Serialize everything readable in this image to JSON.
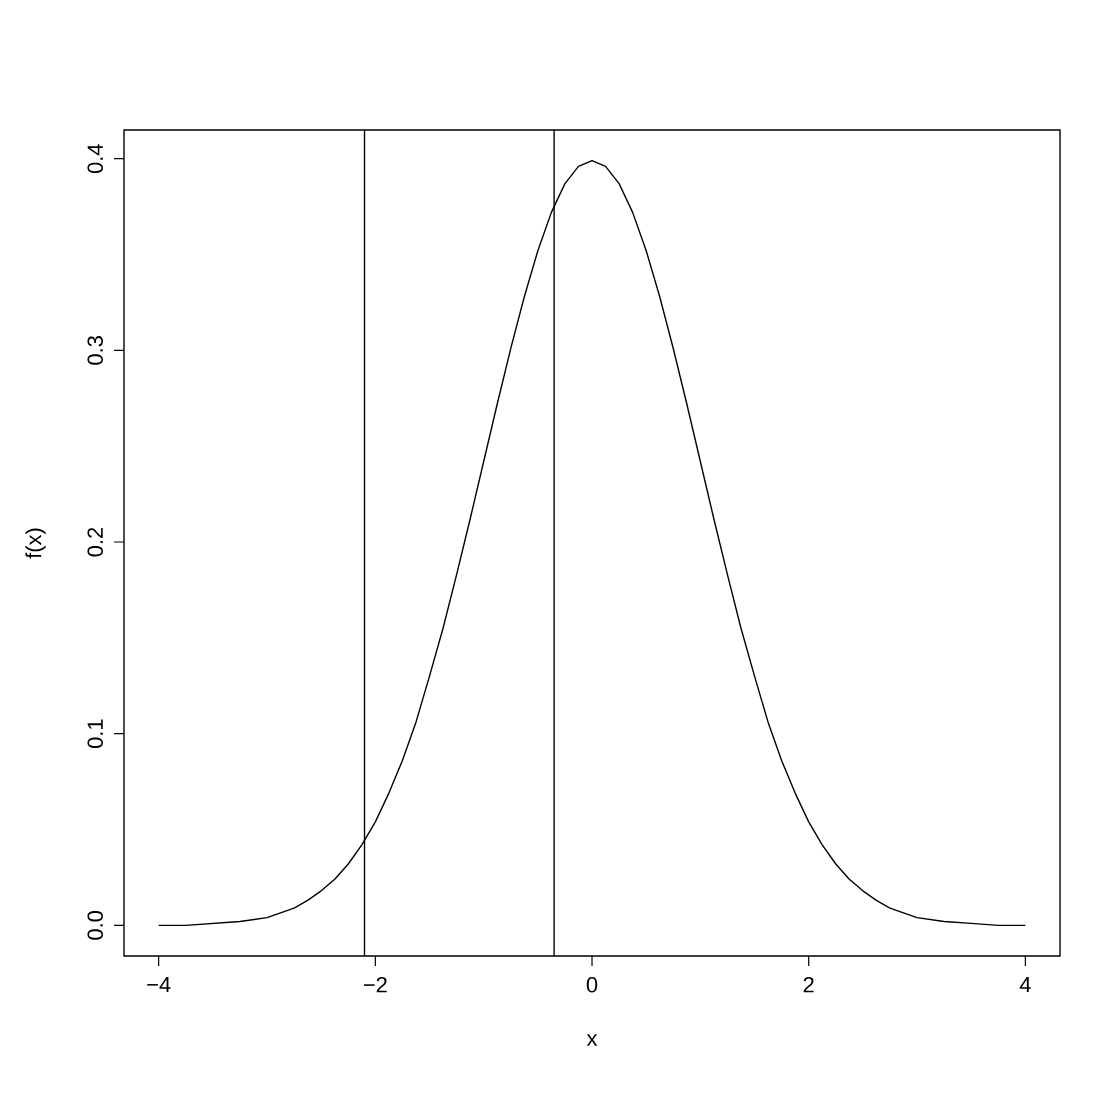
{
  "chart_data": {
    "type": "line",
    "xlabel": "x",
    "ylabel": "f(x)",
    "x": [
      -4,
      -3.75,
      -3.5,
      -3.25,
      -3,
      -2.75,
      -2.625,
      -2.5,
      -2.375,
      -2.25,
      -2.125,
      -2,
      -1.875,
      -1.75,
      -1.625,
      -1.5,
      -1.375,
      -1.25,
      -1.125,
      -1,
      -0.875,
      -0.75,
      -0.625,
      -0.5,
      -0.375,
      -0.25,
      -0.125,
      0,
      0.125,
      0.25,
      0.375,
      0.5,
      0.625,
      0.75,
      0.875,
      1,
      1.125,
      1.25,
      1.375,
      1.5,
      1.625,
      1.75,
      1.875,
      2,
      2.125,
      2.25,
      2.375,
      2.5,
      2.625,
      2.75,
      3,
      3.25,
      3.5,
      3.75,
      4
    ],
    "values": [
      0.0,
      0.0,
      0.001,
      0.002,
      0.004,
      0.009,
      0.013,
      0.018,
      0.024,
      0.032,
      0.042,
      0.054,
      0.069,
      0.086,
      0.106,
      0.13,
      0.155,
      0.183,
      0.212,
      0.242,
      0.272,
      0.301,
      0.328,
      0.352,
      0.372,
      0.387,
      0.396,
      0.399,
      0.396,
      0.387,
      0.372,
      0.352,
      0.328,
      0.301,
      0.272,
      0.242,
      0.212,
      0.183,
      0.155,
      0.13,
      0.106,
      0.086,
      0.069,
      0.054,
      0.042,
      0.032,
      0.024,
      0.018,
      0.013,
      0.009,
      0.004,
      0.002,
      0.001,
      0.0,
      0.0
    ],
    "color": "#000000",
    "xlim": [
      -4.32,
      4.32
    ],
    "ylim": [
      -0.016,
      0.415
    ],
    "xticks": [
      {
        "value": -4,
        "label": "−4"
      },
      {
        "value": -2,
        "label": "−2"
      },
      0,
      2,
      4
    ],
    "yticks": [
      {
        "value": 0,
        "label": "0.0"
      },
      0.1,
      0.2,
      0.3,
      0.4
    ],
    "ref_lines": [
      {
        "axis": "x",
        "value": -2.1,
        "color": "#000000"
      },
      {
        "axis": "x",
        "value": -0.35,
        "color": "#000000"
      }
    ],
    "marker": "none",
    "line_style": "solid"
  }
}
